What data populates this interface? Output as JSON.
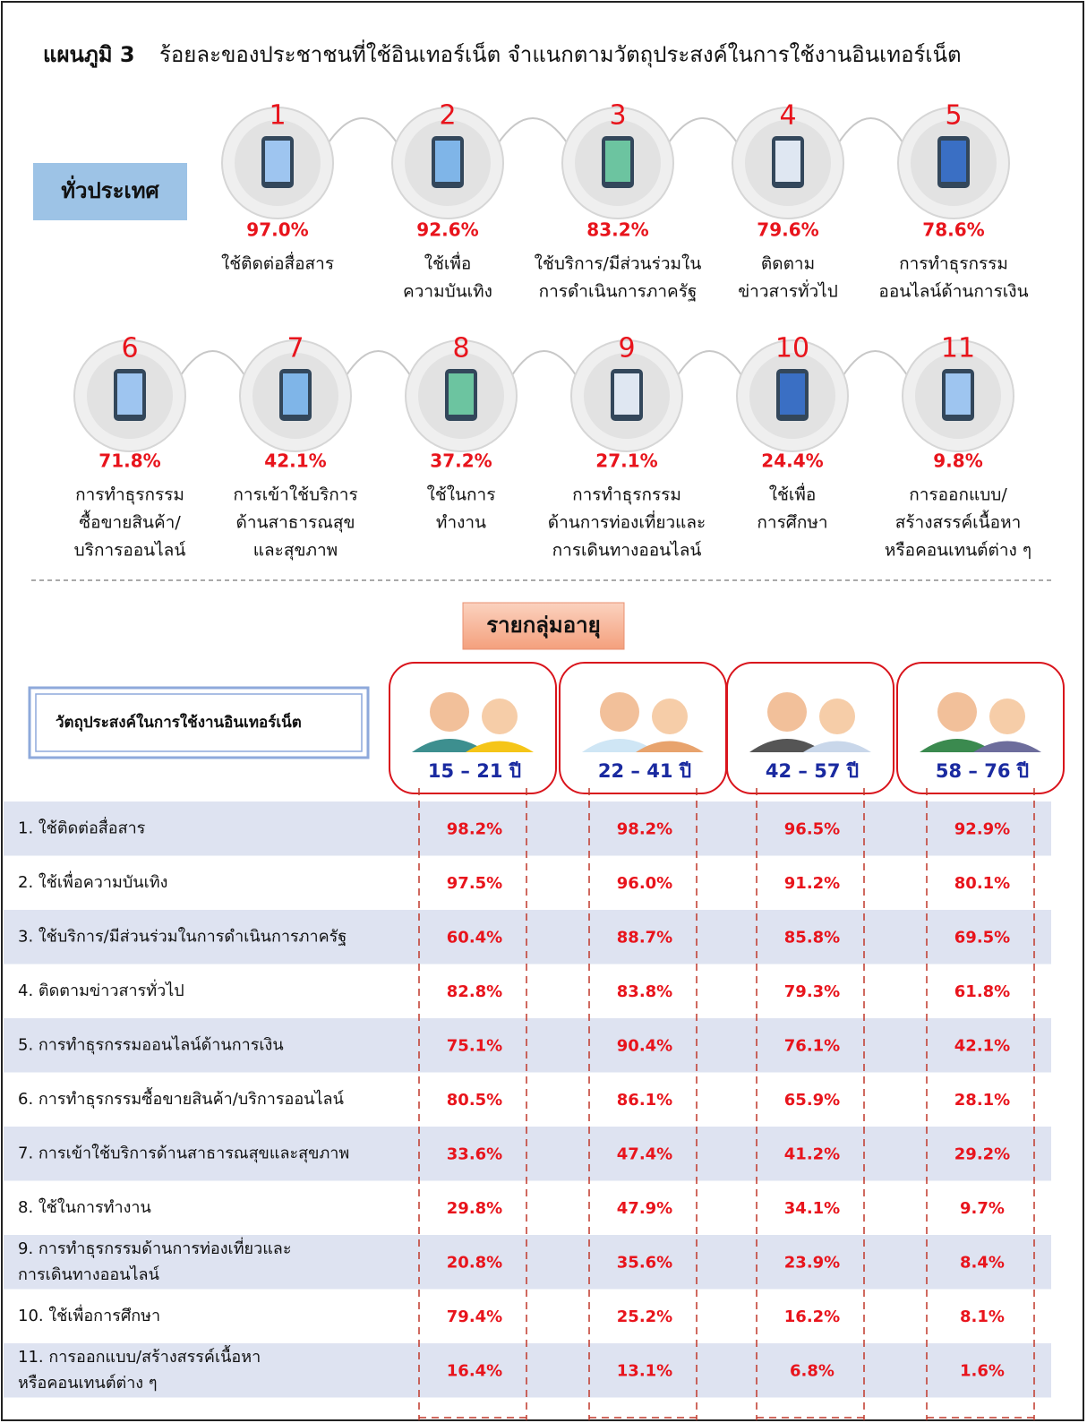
{
  "title": {
    "prefix": "แผนภูมิ 3",
    "text": "ร้อยละของประชาชนที่ใช้อินเทอร์เน็ต  จำแนกตามวัตถุประสงค์ในการใช้งานอินเทอร์เน็ต"
  },
  "national": {
    "label": "ทั่วประเทศ",
    "items": [
      {
        "rank": "1",
        "value": "97.0%",
        "lines": [
          "ใช้ติดต่อสื่อสาร"
        ]
      },
      {
        "rank": "2",
        "value": "92.6%",
        "lines": [
          "ใช้เพื่อ",
          "ความบันเทิง"
        ]
      },
      {
        "rank": "3",
        "value": "83.2%",
        "lines": [
          "ใช้บริการ/มีส่วนร่วมใน",
          "การดำเนินการภาครัฐ"
        ]
      },
      {
        "rank": "4",
        "value": "79.6%",
        "lines": [
          "ติดตาม",
          "ข่าวสารทั่วไป"
        ]
      },
      {
        "rank": "5",
        "value": "78.6%",
        "lines": [
          "การทำธุรกรรม",
          "ออนไลน์ด้านการเงิน"
        ]
      },
      {
        "rank": "6",
        "value": "71.8%",
        "lines": [
          "การทำธุรกรรม",
          "ซื้อขายสินค้า/",
          "บริการออนไลน์"
        ]
      },
      {
        "rank": "7",
        "value": "42.1%",
        "lines": [
          "การเข้าใช้บริการ",
          "ด้านสาธารณสุข",
          "และสุขภาพ"
        ]
      },
      {
        "rank": "8",
        "value": "37.2%",
        "lines": [
          "ใช้ในการ",
          "ทำงาน"
        ]
      },
      {
        "rank": "9",
        "value": "27.1%",
        "lines": [
          "การทำธุรกรรม",
          "ด้านการท่องเที่ยวและ",
          "การเดินทางออนไลน์"
        ]
      },
      {
        "rank": "10",
        "value": "24.4%",
        "lines": [
          "ใช้เพื่อ",
          "การศึกษา"
        ]
      },
      {
        "rank": "11",
        "value": "9.8%",
        "lines": [
          "การออกแบบ/",
          "สร้างสรรค์เนื้อหา",
          "หรือคอนเทนต์ต่าง ๆ"
        ]
      }
    ]
  },
  "by_age": {
    "title": "รายกลุ่มอายุ",
    "header": "วัตถุประสงค์ในการใช้งานอินเทอร์เน็ต",
    "groups": [
      "15 – 21 ปี",
      "22 – 41 ปี",
      "42 – 57 ปี",
      "58 – 76 ปี"
    ],
    "rows": [
      {
        "lines": [
          "1. ใช้ติดต่อสื่อสาร"
        ],
        "values": [
          "98.2%",
          "98.2%",
          "96.5%",
          "92.9%"
        ]
      },
      {
        "lines": [
          "2. ใช้เพื่อความบันเทิง"
        ],
        "values": [
          "97.5%",
          "96.0%",
          "91.2%",
          "80.1%"
        ]
      },
      {
        "lines": [
          "3. ใช้บริการ/มีส่วนร่วมในการดำเนินการภาครัฐ"
        ],
        "values": [
          "60.4%",
          "88.7%",
          "85.8%",
          "69.5%"
        ]
      },
      {
        "lines": [
          "4. ติดตามข่าวสารทั่วไป"
        ],
        "values": [
          "82.8%",
          "83.8%",
          "79.3%",
          "61.8%"
        ]
      },
      {
        "lines": [
          "5. การทำธุรกรรมออนไลน์ด้านการเงิน"
        ],
        "values": [
          "75.1%",
          "90.4%",
          "76.1%",
          "42.1%"
        ]
      },
      {
        "lines": [
          "6. การทำธุรกรรมซื้อขายสินค้า/บริการออนไลน์"
        ],
        "values": [
          "80.5%",
          "86.1%",
          "65.9%",
          "28.1%"
        ]
      },
      {
        "lines": [
          "7. การเข้าใช้บริการด้านสาธารณสุขและสุขภาพ"
        ],
        "values": [
          "33.6%",
          "47.4%",
          "41.2%",
          "29.2%"
        ]
      },
      {
        "lines": [
          "8. ใช้ในการทำงาน"
        ],
        "values": [
          "29.8%",
          "47.9%",
          "34.1%",
          "9.7%"
        ]
      },
      {
        "lines": [
          "9. การทำธุรกรรมด้านการท่องเที่ยวและ",
          "การเดินทางออนไลน์"
        ],
        "values": [
          "20.8%",
          "35.6%",
          "23.9%",
          "8.4%"
        ]
      },
      {
        "lines": [
          "10. ใช้เพื่อการศึกษา"
        ],
        "values": [
          "79.4%",
          "25.2%",
          "16.2%",
          "8.1%"
        ]
      },
      {
        "lines": [
          "11. การออกแบบ/สร้างสรรค์เนื้อหา",
          "หรือคอนเทนต์ต่าง ๆ"
        ],
        "values": [
          "16.4%",
          "13.1%",
          "6.8%",
          "1.6%"
        ]
      }
    ]
  }
}
